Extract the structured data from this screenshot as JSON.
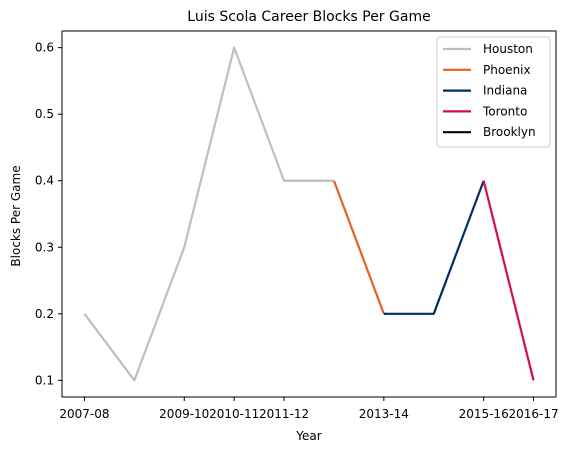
{
  "chart_data": {
    "type": "line",
    "title": "Luis Scola Career Blocks Per Game",
    "xlabel": "Year",
    "ylabel": "Blocks Per Game",
    "x_tick_labels": [
      "2007-08",
      "2009-10",
      "2010-11",
      "2011-12",
      "2013-14",
      "2015-16",
      "2016-17"
    ],
    "x_tick_positions": [
      0,
      2,
      3,
      4,
      6,
      8,
      9
    ],
    "y_ticks": [
      0.1,
      0.2,
      0.3,
      0.4,
      0.5,
      0.6
    ],
    "ylim": [
      0.075,
      0.625
    ],
    "xlim": [
      -0.45,
      9.45
    ],
    "grid": false,
    "legend_position": "top-right",
    "series": [
      {
        "name": "Houston",
        "color": "#bebebe",
        "x": [
          0,
          1,
          2,
          3,
          4,
          5
        ],
        "y": [
          0.2,
          0.1,
          0.3,
          0.6,
          0.4,
          0.4
        ]
      },
      {
        "name": "Phoenix",
        "color": "#e56020",
        "x": [
          5,
          6
        ],
        "y": [
          0.4,
          0.2
        ]
      },
      {
        "name": "Indiana",
        "color": "#002d62",
        "x": [
          6,
          7,
          8
        ],
        "y": [
          0.2,
          0.2,
          0.4
        ]
      },
      {
        "name": "Toronto",
        "color": "#ce1141",
        "x": [
          8,
          9
        ],
        "y": [
          0.4,
          0.1
        ]
      },
      {
        "name": "Brooklyn",
        "color": "#000000",
        "x": [],
        "y": []
      }
    ]
  }
}
